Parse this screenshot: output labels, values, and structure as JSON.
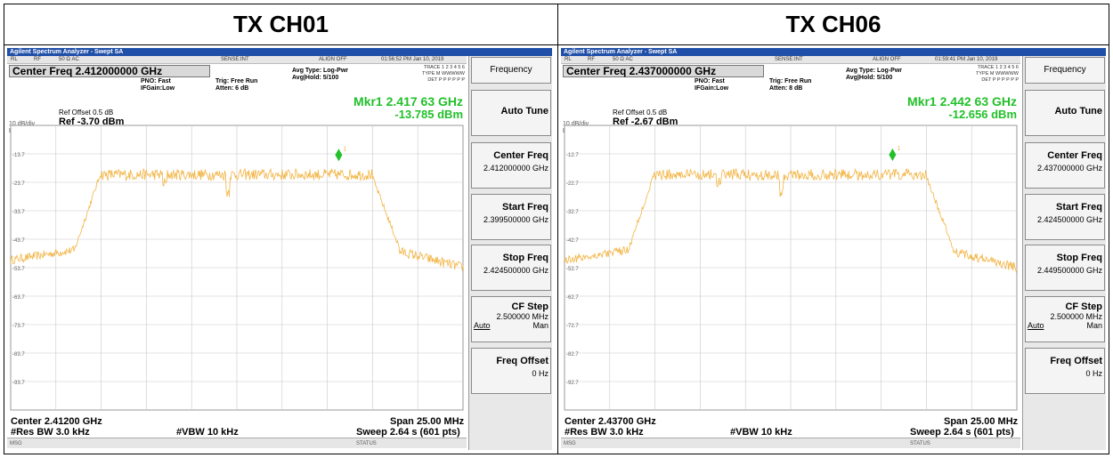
{
  "headers": [
    "TX CH01",
    "TX CH06"
  ],
  "panels": [
    {
      "title": "Agilent Spectrum Analyzer - Swept SA",
      "status": {
        "rl": "RL",
        "rf": "RF",
        "imp": "50 Ω AC",
        "sense": "SENSE:INT",
        "align": "ALIGN OFF",
        "time": "01:56:52 PM Jan 10, 2019"
      },
      "center_freq_label": "Center Freq  2.412000000 GHz",
      "pno": "PNO: Fast",
      "ifgain": "IFGain:Low",
      "trig": "Trig: Free Run",
      "atten": "Atten: 6 dB",
      "avg_type": "Avg Type: Log-Pwr",
      "avg_hold": "Avg|Hold: 5/100",
      "trace_info": [
        "TRACE 1 2 3 4 5 6",
        "TYPE M WWWWW",
        "DET P P P P P P"
      ],
      "marker_label": "Mkr1 2.417 63 GHz",
      "marker_value": "-13.785 dBm",
      "ref_offset": "Ref Offset 0.5 dB",
      "ref_level": "Ref -3.70 dBm",
      "scale_div": "10 dB/div",
      "scale_type": "Log",
      "y_ticks": [
        "-13.7",
        "-23.7",
        "-33.7",
        "-43.7",
        "-53.7",
        "-63.7",
        "-73.7",
        "-83.7",
        "-93.7"
      ],
      "center_bottom": "Center 2.41200 GHz",
      "span": "Span 25.00 MHz",
      "res_bw": "#Res BW 3.0 kHz",
      "vbw": "#VBW 10 kHz",
      "sweep": "Sweep  2.64 s (601 pts)",
      "msg": "MSG",
      "status_label": "STATUS",
      "softkeys": {
        "header": "Frequency",
        "auto_tune": "Auto Tune",
        "center_freq_title": "Center Freq",
        "center_freq_value": "2.412000000 GHz",
        "start_freq_title": "Start Freq",
        "start_freq_value": "2.399500000 GHz",
        "stop_freq_title": "Stop Freq",
        "stop_freq_value": "2.424500000 GHz",
        "cf_step_title": "CF Step",
        "cf_step_value": "2.500000 MHz",
        "auto": "Auto",
        "man": "Man",
        "freq_offset_title": "Freq Offset",
        "freq_offset_value": "0 Hz"
      },
      "chart_data": {
        "type": "line",
        "x_start_ghz": 2.3995,
        "x_stop_ghz": 2.4245,
        "y_top_dbm": -3.7,
        "y_bottom_dbm": -103.7,
        "marker": {
          "x_ghz": 2.41763,
          "y_dbm": -13.785
        },
        "grid": true
      }
    },
    {
      "title": "Agilent Spectrum Analyzer - Swept SA",
      "status": {
        "rl": "RL",
        "rf": "RF",
        "imp": "50 Ω AC",
        "sense": "SENSE:INT",
        "align": "ALIGN OFF",
        "time": "01:59:41 PM Jan 10, 2019"
      },
      "center_freq_label": "Center Freq  2.437000000 GHz",
      "pno": "PNO: Fast",
      "ifgain": "IFGain:Low",
      "trig": "Trig: Free Run",
      "atten": "Atten: 8 dB",
      "avg_type": "Avg Type: Log-Pwr",
      "avg_hold": "Avg|Hold: 5/100",
      "trace_info": [
        "TRACE 1 2 3 4 5 6",
        "TYPE M WWWWW",
        "DET P P P P P P"
      ],
      "marker_label": "Mkr1 2.442 63 GHz",
      "marker_value": "-12.656 dBm",
      "ref_offset": "Ref Offset 0.5 dB",
      "ref_level": "Ref -2.67 dBm",
      "scale_div": "10 dB/div",
      "scale_type": "Log",
      "y_ticks": [
        "-12.7",
        "-22.7",
        "-32.7",
        "-42.7",
        "-52.7",
        "-62.7",
        "-72.7",
        "-82.7",
        "-92.7"
      ],
      "center_bottom": "Center 2.43700 GHz",
      "span": "Span 25.00 MHz",
      "res_bw": "#Res BW 3.0 kHz",
      "vbw": "#VBW 10 kHz",
      "sweep": "Sweep  2.64 s (601 pts)",
      "msg": "MSG",
      "status_label": "STATUS",
      "softkeys": {
        "header": "Frequency",
        "auto_tune": "Auto Tune",
        "center_freq_title": "Center Freq",
        "center_freq_value": "2.437000000 GHz",
        "start_freq_title": "Start Freq",
        "start_freq_value": "2.424500000 GHz",
        "stop_freq_title": "Stop Freq",
        "stop_freq_value": "2.449500000 GHz",
        "cf_step_title": "CF Step",
        "cf_step_value": "2.500000 MHz",
        "auto": "Auto",
        "man": "Man",
        "freq_offset_title": "Freq Offset",
        "freq_offset_value": "0 Hz"
      },
      "chart_data": {
        "type": "line",
        "x_start_ghz": 2.4245,
        "x_stop_ghz": 2.4495,
        "y_top_dbm": -2.67,
        "y_bottom_dbm": -102.67,
        "marker": {
          "x_ghz": 2.44263,
          "y_dbm": -12.656
        },
        "grid": true
      }
    }
  ],
  "colors": {
    "trace": "#f2b443",
    "marker": "#22c02a",
    "titlebar": "#1f4fa8",
    "grid": "#c8c8c8"
  }
}
